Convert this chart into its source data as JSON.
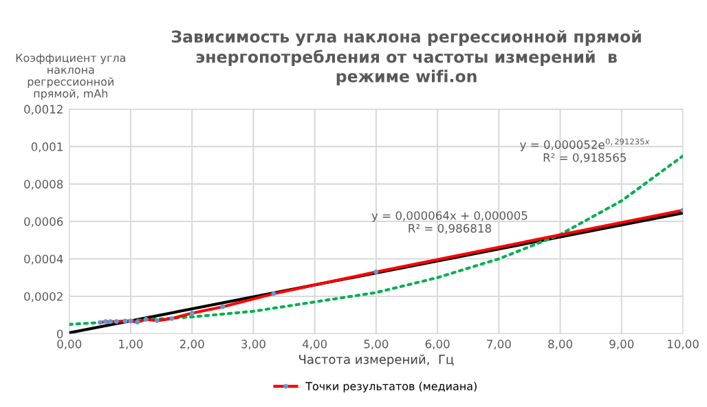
{
  "chart_data": {
    "type": "line",
    "title": "Зависимость угла наклона регрессионной прямой\nэнергопотребления от частоты измерений  в\nрежиме wifi.on",
    "xlabel": "Частота измерений,  Гц",
    "ylabel": "Коэффициент угла\nнаклона\nрегрессионной\nпрямой, mAh",
    "x": [
      0.5,
      0.59,
      0.67,
      0.77,
      0.91,
      1.0,
      1.11,
      1.25,
      1.43,
      1.67,
      2.0,
      2.5,
      3.33,
      5.0,
      10.0
    ],
    "series": [
      {
        "name": "Точки результатов (медиана)",
        "color": "#ff0000",
        "marker": "circle",
        "line_style": "solid",
        "values": [
          6e-05,
          6.5e-05,
          6.5e-05,
          6.5e-05,
          6.8e-05,
          6.8e-05,
          6.2e-05,
          7.7e-05,
          7e-05,
          8.1e-05,
          0.00011,
          0.000144,
          0.000214,
          0.00033,
          0.00066
        ]
      },
      {
        "type": "line",
        "color": "#000000",
        "marker": "none",
        "line_style": "solid",
        "x": [
          0,
          10
        ],
        "values": [
          5e-06,
          0.000645
        ]
      },
      {
        "type": "line",
        "color": "#00b050",
        "marker": "none",
        "line_style": "dotted",
        "x": [
          0,
          1,
          2,
          3,
          4,
          5,
          6,
          7,
          8,
          9,
          10
        ],
        "values": [
          5e-05,
          7e-05,
          9e-05,
          0.00012,
          0.00017,
          0.00022,
          0.0003,
          0.0004,
          0.00053,
          0.00071,
          0.00095
        ]
      }
    ],
    "annotations": [
      "y = 0,000064x + 0,000005\nR² = 0,986818",
      "y = 0,000052e$^{0,291235x}$\nR² = 0,918565"
    ],
    "xlim": [
      0,
      10
    ],
    "ylim": [
      0,
      0.0012
    ],
    "xticks": [
      {
        "value": 0,
        "label": "0,00"
      },
      {
        "value": 1,
        "label": "1,00"
      },
      {
        "value": 2,
        "label": "2,00"
      },
      {
        "value": 3,
        "label": "3,00"
      },
      {
        "value": 4,
        "label": "4,00"
      },
      {
        "value": 5,
        "label": "5,00"
      },
      {
        "value": 6,
        "label": "6,00"
      },
      {
        "value": 7,
        "label": "7,00"
      },
      {
        "value": 8,
        "label": "8,00"
      },
      {
        "value": 9,
        "label": "9,00"
      },
      {
        "value": 10,
        "label": "10,00"
      }
    ],
    "yticks": [
      0,
      {
        "value": 0.0002,
        "label": "0,0002"
      },
      {
        "value": 0.0004,
        "label": "0,0004"
      },
      {
        "value": 0.0006,
        "label": "0,0006"
      },
      {
        "value": 0.0008,
        "label": "0,0008"
      },
      {
        "value": 0.001,
        "label": "0,001"
      },
      {
        "value": 0.0012,
        "label": "0,0012"
      }
    ],
    "grid": true,
    "legend": "bottom"
  }
}
